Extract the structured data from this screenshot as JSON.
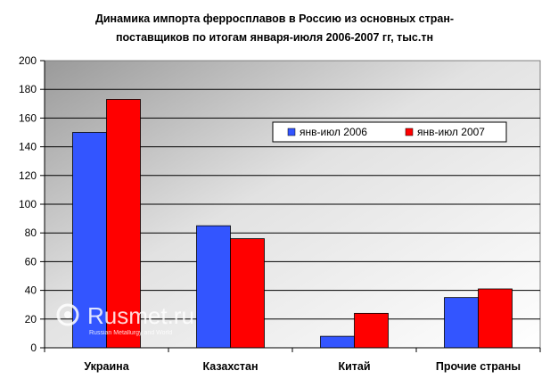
{
  "chart_data": {
    "type": "bar",
    "title_lines": [
      "Динамика импорта ферросплавов в Россию из основных стран-",
      "поставщиков по итогам января-июля 2006-2007 гг, тыс.тн"
    ],
    "categories": [
      "Украина",
      "Казахстан",
      "Китай",
      "Прочие страны"
    ],
    "series": [
      {
        "name": "янв-июл 2006",
        "color": "#3355ff",
        "values": [
          150,
          85,
          8,
          35
        ]
      },
      {
        "name": "янв-июл 2007",
        "color": "#ff0000",
        "values": [
          173,
          76,
          24,
          41
        ]
      }
    ],
    "ylim": [
      0,
      200
    ],
    "yticks": [
      0,
      20,
      40,
      60,
      80,
      100,
      120,
      140,
      160,
      180,
      200
    ],
    "grid": true,
    "legend_position": "top-right",
    "background": "gradient-gray",
    "xlabel": "",
    "ylabel": ""
  },
  "watermark": {
    "brand": "Rusmet.ru",
    "tagline": "Russian Metallurgy and World"
  }
}
